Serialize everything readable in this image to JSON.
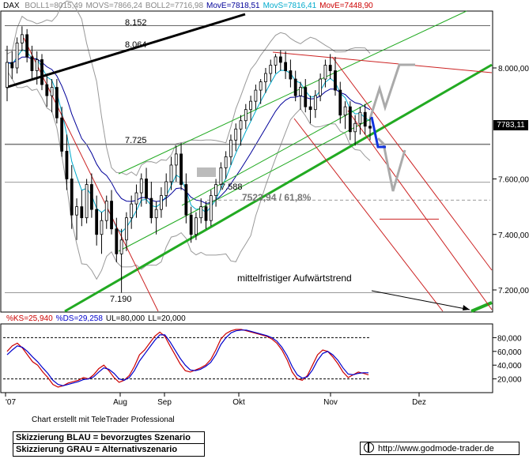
{
  "header": {
    "symbol": "DAX",
    "indicators": [
      {
        "text": "BOLL1=8015,49",
        "color": "#888888"
      },
      {
        "text": "MOVS=7866,24",
        "color": "#888888"
      },
      {
        "text": "BOLL2=7716,98",
        "color": "#888888"
      },
      {
        "text": "MovE=7818,51",
        "color": "#000099"
      },
      {
        "text": "MovS=7816,41",
        "color": "#00aacc"
      },
      {
        "text": "MovE=7448,90",
        "color": "#cc0000"
      }
    ]
  },
  "osc_header": {
    "indicators": [
      {
        "text": "%KS=25,940",
        "color": "#cc0000"
      },
      {
        "text": "%DS=29,258",
        "color": "#0000cc"
      },
      {
        "text": "UL=80,000",
        "color": "#000000"
      },
      {
        "text": "LL=20,000",
        "color": "#000000"
      }
    ]
  },
  "annotations": {
    "level_8152": "8.152",
    "level_8064": "8.064",
    "level_7725": "7.725",
    "level_7588": "7.588",
    "level_7190": "7.190",
    "fib": "7523,94 / 61,8%",
    "trend": "mittelfristiger Aufwärtstrend",
    "last_price": "7783,11"
  },
  "footer": {
    "credit": "Chart erstellt mit TeleTrader Professional",
    "legend_blue": "Skizzierung BLAU = bevorzugtes Szenario",
    "legend_gray": "Skizzierung GRAU = Alternativszenario",
    "url": "http://www.godmode-trader.de",
    "url_icon": "globe-icon"
  },
  "chart_data": [
    {
      "type": "candlestick",
      "title": "DAX",
      "x_tick_labels": [
        "'07",
        "Aug",
        "Sep",
        "Okt",
        "Nov",
        "Dez"
      ],
      "y_tick_labels": [
        "7.200,00",
        "7.400,00",
        "7.600,00",
        "8.000,00"
      ],
      "ylim": [
        7120,
        8230
      ],
      "last_price": 7783.11,
      "horizontal_levels": [
        8152,
        8064,
        7725,
        7588,
        7523.94,
        7190
      ],
      "grid": false,
      "ohlc": [
        [
          7930,
          8080,
          7880,
          8020
        ],
        [
          8020,
          8060,
          7960,
          8000
        ],
        [
          8000,
          8110,
          7980,
          8090
        ],
        [
          8090,
          8150,
          8060,
          8120
        ],
        [
          8120,
          8140,
          8020,
          8040
        ],
        [
          8040,
          8080,
          7960,
          7990
        ],
        [
          7990,
          8060,
          7940,
          8030
        ],
        [
          8030,
          8050,
          7920,
          7940
        ],
        [
          7940,
          7980,
          7860,
          7900
        ],
        [
          7900,
          7960,
          7840,
          7930
        ],
        [
          7930,
          7960,
          7800,
          7820
        ],
        [
          7820,
          7860,
          7680,
          7700
        ],
        [
          7700,
          7760,
          7560,
          7600
        ],
        [
          7600,
          7650,
          7420,
          7470
        ],
        [
          7470,
          7530,
          7380,
          7500
        ],
        [
          7500,
          7560,
          7430,
          7460
        ],
        [
          7460,
          7600,
          7440,
          7580
        ],
        [
          7580,
          7620,
          7460,
          7490
        ],
        [
          7490,
          7540,
          7360,
          7400
        ],
        [
          7400,
          7480,
          7330,
          7450
        ],
        [
          7450,
          7540,
          7420,
          7520
        ],
        [
          7520,
          7560,
          7400,
          7420
        ],
        [
          7420,
          7460,
          7300,
          7330
        ],
        [
          7330,
          7420,
          7190,
          7380
        ],
        [
          7380,
          7480,
          7340,
          7460
        ],
        [
          7460,
          7540,
          7420,
          7510
        ],
        [
          7510,
          7580,
          7460,
          7550
        ],
        [
          7550,
          7620,
          7500,
          7600
        ],
        [
          7600,
          7640,
          7510,
          7530
        ],
        [
          7530,
          7590,
          7440,
          7460
        ],
        [
          7460,
          7520,
          7400,
          7490
        ],
        [
          7490,
          7570,
          7460,
          7540
        ],
        [
          7540,
          7620,
          7500,
          7590
        ],
        [
          7590,
          7680,
          7560,
          7650
        ],
        [
          7650,
          7720,
          7590,
          7690
        ],
        [
          7690,
          7730,
          7560,
          7580
        ],
        [
          7580,
          7620,
          7440,
          7470
        ],
        [
          7470,
          7500,
          7370,
          7400
        ],
        [
          7400,
          7480,
          7380,
          7460
        ],
        [
          7460,
          7530,
          7440,
          7500
        ],
        [
          7500,
          7520,
          7420,
          7450
        ],
        [
          7450,
          7560,
          7430,
          7540
        ],
        [
          7540,
          7600,
          7500,
          7580
        ],
        [
          7580,
          7660,
          7560,
          7640
        ],
        [
          7640,
          7700,
          7600,
          7680
        ],
        [
          7680,
          7760,
          7650,
          7740
        ],
        [
          7740,
          7800,
          7700,
          7780
        ],
        [
          7780,
          7830,
          7720,
          7810
        ],
        [
          7810,
          7870,
          7780,
          7850
        ],
        [
          7850,
          7900,
          7810,
          7880
        ],
        [
          7880,
          7940,
          7850,
          7920
        ],
        [
          7920,
          7960,
          7870,
          7950
        ],
        [
          7950,
          8000,
          7910,
          7980
        ],
        [
          7980,
          8030,
          7950,
          8010
        ],
        [
          8010,
          8050,
          7980,
          8040
        ],
        [
          8040,
          8064,
          7990,
          8020
        ],
        [
          8020,
          8060,
          7960,
          7990
        ],
        [
          7990,
          8030,
          7930,
          7960
        ],
        [
          7960,
          7990,
          7880,
          7900
        ],
        [
          7900,
          7950,
          7850,
          7930
        ],
        [
          7930,
          7960,
          7840,
          7860
        ],
        [
          7860,
          7900,
          7800,
          7850
        ],
        [
          7850,
          7920,
          7820,
          7900
        ],
        [
          7900,
          7980,
          7880,
          7960
        ],
        [
          7960,
          8030,
          7930,
          8010
        ],
        [
          8010,
          8050,
          7960,
          7990
        ],
        [
          7990,
          8040,
          7900,
          7920
        ],
        [
          7920,
          7950,
          7800,
          7830
        ],
        [
          7830,
          7880,
          7780,
          7860
        ],
        [
          7860,
          7880,
          7740,
          7770
        ],
        [
          7770,
          7830,
          7720,
          7800
        ],
        [
          7800,
          7860,
          7760,
          7840
        ],
        [
          7840,
          7870,
          7760,
          7790
        ],
        [
          7790,
          7820,
          7740,
          7783
        ]
      ]
    },
    {
      "type": "line",
      "title": "Stochastic",
      "y_tick_labels": [
        "80,000",
        "60,000",
        "40,000",
        "20,000"
      ],
      "ylim": [
        0,
        100
      ],
      "upper_level": 80,
      "lower_level": 20,
      "series": [
        {
          "name": "%KS",
          "color": "#cc0000",
          "values": [
            60,
            68,
            72,
            65,
            55,
            45,
            40,
            30,
            22,
            12,
            8,
            10,
            14,
            16,
            18,
            22,
            20,
            26,
            35,
            40,
            32,
            22,
            15,
            18,
            25,
            38,
            55,
            62,
            72,
            82,
            88,
            82,
            68,
            55,
            42,
            32,
            30,
            33,
            36,
            40,
            48,
            62,
            78,
            86,
            90,
            92,
            92,
            90,
            88,
            86,
            84,
            82,
            78,
            72,
            62,
            48,
            30,
            20,
            18,
            25,
            40,
            55,
            62,
            60,
            52,
            42,
            30,
            22,
            26,
            30,
            28,
            26
          ]
        },
        {
          "name": "%DS",
          "color": "#0000cc",
          "values": [
            55,
            62,
            68,
            66,
            60,
            52,
            45,
            36,
            28,
            18,
            12,
            10,
            12,
            14,
            16,
            19,
            20,
            23,
            30,
            36,
            34,
            28,
            20,
            18,
            22,
            32,
            46,
            56,
            66,
            76,
            84,
            84,
            74,
            62,
            50,
            40,
            33,
            32,
            34,
            38,
            44,
            55,
            70,
            80,
            87,
            90,
            91,
            91,
            89,
            87,
            85,
            83,
            80,
            75,
            66,
            54,
            38,
            26,
            21,
            23,
            33,
            47,
            57,
            60,
            55,
            47,
            36,
            27,
            26,
            28,
            29,
            29
          ]
        }
      ]
    }
  ]
}
